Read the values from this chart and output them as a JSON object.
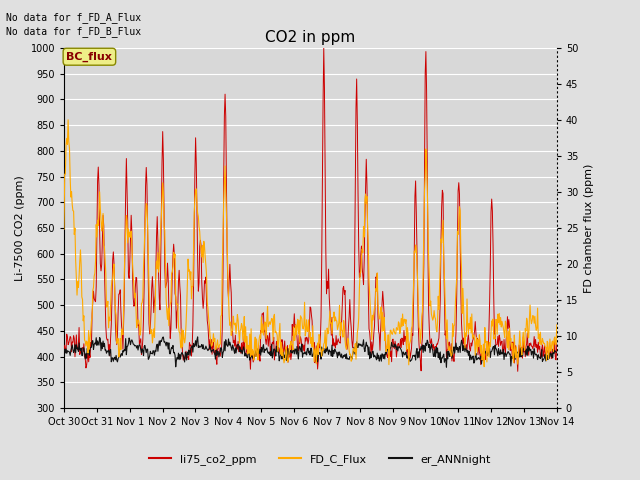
{
  "title": "CO2 in ppm",
  "ylabel_left": "Li-7500 CO2 (ppm)",
  "ylabel_right": "FD chamber flux (ppm)",
  "ylim_left": [
    300,
    1000
  ],
  "ylim_right": [
    0,
    50
  ],
  "yticks_left": [
    300,
    350,
    400,
    450,
    500,
    550,
    600,
    650,
    700,
    750,
    800,
    850,
    900,
    950,
    1000
  ],
  "yticks_right": [
    0,
    5,
    10,
    15,
    20,
    25,
    30,
    35,
    40,
    45,
    50
  ],
  "xlabel_ticks": [
    "Oct 30",
    "Oct 31",
    "Nov 1",
    "Nov 2",
    "Nov 3",
    "Nov 4",
    "Nov 5",
    "Nov 6",
    "Nov 7",
    "Nov 8",
    "Nov 9",
    "Nov 10",
    "Nov 11",
    "Nov 12",
    "Nov 13",
    "Nov 14"
  ],
  "note1": "No data for f_FD_A_Flux",
  "note2": "No data for f_FD_B_Flux",
  "bc_flux_label": "BC_flux",
  "legend_entries": [
    "li75_co2_ppm",
    "FD_C_Flux",
    "er_ANNnight"
  ],
  "legend_colors": [
    "#cc0000",
    "#ffaa00",
    "#111111"
  ],
  "bg_color": "#e0e0e0",
  "plot_bg_color": "#d8d8d8",
  "grid_color": "#ffffff",
  "title_fontsize": 11,
  "label_fontsize": 8,
  "tick_fontsize": 7,
  "note_fontsize": 7,
  "legend_fontsize": 8
}
